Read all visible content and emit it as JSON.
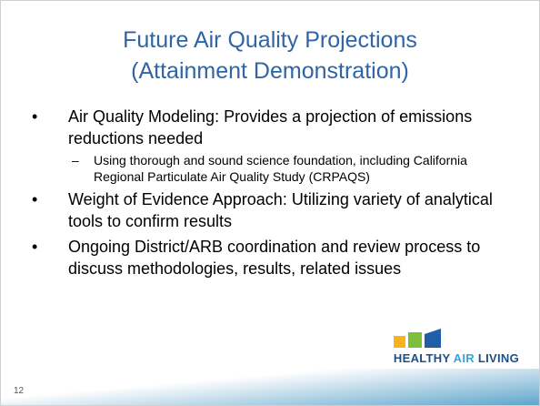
{
  "slide": {
    "title": [
      "Future Air Quality Projections",
      "(Attainment Demonstration)"
    ],
    "bullets": [
      {
        "text": "Air Quality Modeling: Provides a projection of emissions reductions needed",
        "sub": [
          "Using thorough and sound science foundation, including California Regional Particulate Air Quality Study (CRPAQS)"
        ]
      },
      {
        "text": "Weight of Evidence Approach: Utilizing variety of analytical tools to confirm results",
        "sub": []
      },
      {
        "text": "Ongoing District/ARB coordination and review process to discuss methodologies, results, related issues",
        "sub": []
      }
    ],
    "slide_number": "12",
    "logo": {
      "word1": "HEALTHY",
      "word2": "AIR",
      "word3": "LIVING"
    }
  }
}
